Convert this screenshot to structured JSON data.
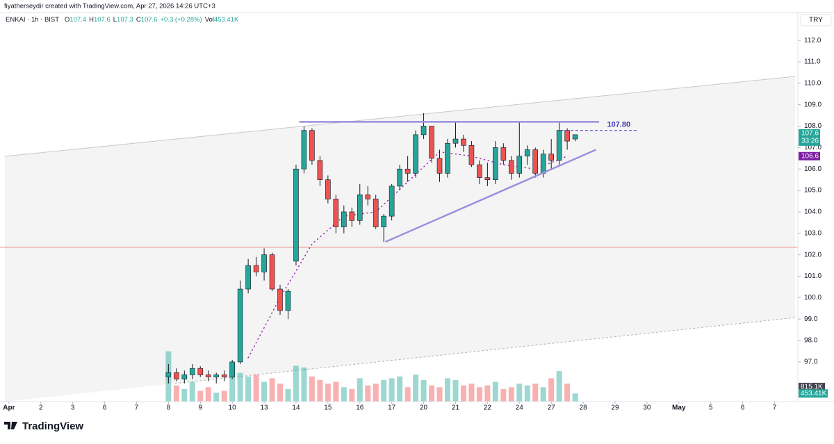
{
  "chart_data": {
    "type": "candlestick",
    "attribution": "fiyatherseydir created with TradingView.com, Apr 27, 2026 14:26 UTC+3",
    "symbol": "ENKAI · 1h · BIST",
    "ohlc": [
      {
        "label": "O",
        "value": 107.4
      },
      {
        "label": "H",
        "value": 107.6
      },
      {
        "label": "L",
        "value": 107.3
      },
      {
        "label": "C",
        "value": 107.6
      }
    ],
    "change": "+0.3 (+0.28%)",
    "volume_label": "Vol",
    "volume_value": "453.41K",
    "currency": "TRY",
    "brand": "TradingView",
    "ylim": [
      95.15,
      113.3
    ],
    "yticks": [
      {
        "value": 97,
        "label": "97.0"
      },
      {
        "value": 98,
        "label": "98.0"
      },
      {
        "value": 99,
        "label": "99.0"
      },
      {
        "value": 100,
        "label": "100.0"
      },
      {
        "value": 101,
        "label": "101.0"
      },
      {
        "value": 102,
        "label": "102.0"
      },
      {
        "value": 103,
        "label": "103.0"
      },
      {
        "value": 104,
        "label": "104.0"
      },
      {
        "value": 105,
        "label": "105.0"
      },
      {
        "value": 106,
        "label": "106.0"
      },
      {
        "value": 107,
        "label": "107.0"
      },
      {
        "value": 108,
        "label": "108.0"
      },
      {
        "value": 109,
        "label": "109.0"
      },
      {
        "value": 110,
        "label": "110.0"
      },
      {
        "value": 111,
        "label": "111.0"
      },
      {
        "value": 112,
        "label": "112.0"
      }
    ],
    "xlim": [
      -0.28,
      24.73
    ],
    "xticks": [
      {
        "value": 0,
        "label": "Apr"
      },
      {
        "value": 1,
        "label": "2"
      },
      {
        "value": 2,
        "label": "3"
      },
      {
        "value": 3,
        "label": "6"
      },
      {
        "value": 4,
        "label": "7"
      },
      {
        "value": 5,
        "label": "8"
      },
      {
        "value": 6,
        "label": "9"
      },
      {
        "value": 7,
        "label": "10"
      },
      {
        "value": 8,
        "label": "13"
      },
      {
        "value": 9,
        "label": "14"
      },
      {
        "value": 10,
        "label": "15"
      },
      {
        "value": 11,
        "label": "16"
      },
      {
        "value": 12,
        "label": "17"
      },
      {
        "value": 13,
        "label": "20"
      },
      {
        "value": 14,
        "label": "21"
      },
      {
        "value": 15,
        "label": "22"
      },
      {
        "value": 16,
        "label": "24"
      },
      {
        "value": 17,
        "label": "27"
      },
      {
        "value": 18,
        "label": "28"
      },
      {
        "value": 19,
        "label": "29"
      },
      {
        "value": 20,
        "label": "30"
      },
      {
        "value": 21,
        "label": "May"
      },
      {
        "value": 22,
        "label": "5"
      },
      {
        "value": 23,
        "label": "6"
      },
      {
        "value": 24,
        "label": "7"
      }
    ],
    "up_color": "#26a69a",
    "down_color": "#ef5350",
    "candles": {
      "x": [
        5,
        5.25,
        5.5,
        5.75,
        6,
        6.25,
        6.5,
        6.75,
        7,
        7.25,
        7.5,
        7.75,
        8,
        8.25,
        8.5,
        8.75,
        9,
        9.25,
        9.5,
        9.75,
        10,
        10.25,
        10.5,
        10.75,
        11,
        11.25,
        11.5,
        11.75,
        12,
        12.25,
        12.5,
        12.75,
        13,
        13.25,
        13.5,
        13.75,
        14,
        14.25,
        14.5,
        14.75,
        15,
        15.25,
        15.5,
        15.75,
        16,
        16.25,
        16.5,
        16.75,
        17,
        17.25,
        17.5,
        17.75
      ],
      "open": [
        96.3,
        96.5,
        96.2,
        96.4,
        96.7,
        96.4,
        96.3,
        96.4,
        96.3,
        97.0,
        100.4,
        101.5,
        101.2,
        102.0,
        100.4,
        99.4,
        101.7,
        106.0,
        107.8,
        106.4,
        105.5,
        104.6,
        103.3,
        104.0,
        103.6,
        104.8,
        104.6,
        103.3,
        103.8,
        105.2,
        106.0,
        105.8,
        107.6,
        108.0,
        106.5,
        105.8,
        107.2,
        107.4,
        107.1,
        106.2,
        105.6,
        105.5,
        107.0,
        106.4,
        105.8,
        106.6,
        106.9,
        105.8,
        106.7,
        106.4,
        107.8,
        107.4
      ],
      "high": [
        96.9,
        96.7,
        96.6,
        96.9,
        96.8,
        96.6,
        96.5,
        96.6,
        97.1,
        100.8,
        101.8,
        101.9,
        102.3,
        102.1,
        100.6,
        100.4,
        106.2,
        108.0,
        107.9,
        106.6,
        105.7,
        104.8,
        104.3,
        104.2,
        105.3,
        105.2,
        104.8,
        103.9,
        105.3,
        106.2,
        106.6,
        107.8,
        108.6,
        108.0,
        106.9,
        107.4,
        108.2,
        107.6,
        107.3,
        106.4,
        106.3,
        107.3,
        107.2,
        106.6,
        108.2,
        107.1,
        107.0,
        106.9,
        107.4,
        108.2,
        107.9,
        107.6
      ],
      "low": [
        96.0,
        96.1,
        96.0,
        96.2,
        96.3,
        96.1,
        96.0,
        96.1,
        96.2,
        96.9,
        100.2,
        101.0,
        100.8,
        100.3,
        99.2,
        99.0,
        101.5,
        105.8,
        106.2,
        105.2,
        104.4,
        103.0,
        103.0,
        103.3,
        103.4,
        104.3,
        103.2,
        102.6,
        103.6,
        105.0,
        105.4,
        105.6,
        107.4,
        106.3,
        105.4,
        105.6,
        107.0,
        106.8,
        106.1,
        105.3,
        105.2,
        105.3,
        106.2,
        105.5,
        105.6,
        106.2,
        105.6,
        105.6,
        106.0,
        106.2,
        106.9,
        107.3
      ],
      "close": [
        96.5,
        96.2,
        96.4,
        96.7,
        96.4,
        96.3,
        96.4,
        96.3,
        97.0,
        100.4,
        101.5,
        101.2,
        102.0,
        100.4,
        99.4,
        100.3,
        106.0,
        107.8,
        106.4,
        105.5,
        104.6,
        103.3,
        104.0,
        103.6,
        104.8,
        104.6,
        103.3,
        103.8,
        105.2,
        106.0,
        105.8,
        107.6,
        108.0,
        106.5,
        105.8,
        107.2,
        107.4,
        107.1,
        106.2,
        105.6,
        105.5,
        107.0,
        106.4,
        105.8,
        106.6,
        106.9,
        105.8,
        106.7,
        106.4,
        107.8,
        107.3,
        107.6
      ],
      "volume": [
        2800,
        900,
        700,
        1100,
        600,
        800,
        500,
        600,
        1500,
        1600,
        1400,
        1500,
        1100,
        1300,
        1000,
        700,
        2000,
        1900,
        1400,
        1200,
        1000,
        1100,
        800,
        700,
        1300,
        900,
        1000,
        1200,
        1300,
        1400,
        800,
        1500,
        1200,
        900,
        800,
        1300,
        1200,
        900,
        1000,
        800,
        900,
        1100,
        700,
        800,
        1000,
        900,
        1000,
        800,
        1300,
        1700,
        1000,
        453.41
      ]
    },
    "volume_lim": [
      0,
      5800
    ],
    "ma": {
      "x": [
        7.5,
        8.5,
        9.5,
        10.5,
        11.5,
        12.5,
        13.5,
        14.5,
        15.5,
        16.5,
        17.5
      ],
      "values": [
        97.2,
        100.0,
        102.5,
        103.8,
        104.0,
        105.4,
        106.8,
        106.6,
        106.2,
        106.0,
        106.6
      ],
      "color": "#9c27b0"
    },
    "last_price": 107.6,
    "countdown": "33:26",
    "ma_price": 106.6,
    "volume_ma": {
      "value": 815.1,
      "label": "815.1K"
    },
    "volume_last": {
      "value": 453.41,
      "label": "453.41K"
    },
    "drawings": {
      "resistance": {
        "x": [
          9.1,
          18.5
        ],
        "y": [
          108.2,
          108.2
        ],
        "color": "#9b8fe0"
      },
      "support": {
        "x": [
          11.8,
          18.4
        ],
        "y": [
          102.6,
          106.9
        ],
        "color": "#9b8fe0"
      },
      "channel_upper": {
        "x": [
          -0.13,
          24.65
        ],
        "y": [
          106.59,
          110.32
        ],
        "color": "#c8c8c8"
      },
      "channel_lower": {
        "x": [
          5.2,
          24.65
        ],
        "y": [
          96.0,
          99.07
        ],
        "color": "#b0b0b0"
      },
      "level": {
        "y": 102.35,
        "color": "#f28b8b"
      },
      "target": {
        "x": [
          17.3,
          19.7
        ],
        "y": {
          "value": 107.8,
          "label": "107.80"
        },
        "color": "#3f35b5"
      }
    }
  }
}
